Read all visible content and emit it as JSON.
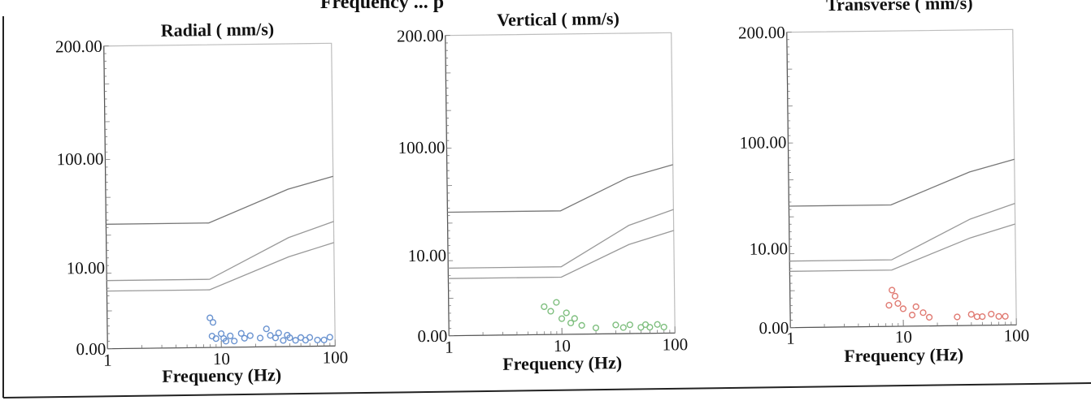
{
  "page_title": "Frequency ... p",
  "chart_data": [
    {
      "type": "scatter",
      "title": "Radial ( mm/s)",
      "xlabel": "Frequency (Hz)",
      "ylabel": "",
      "x_scale": "log",
      "xlim": [
        1,
        100
      ],
      "x_tick_labels": [
        "1",
        "10",
        "100"
      ],
      "y_tick_labels": [
        "0.00",
        "10.00",
        "100.00",
        "200.00"
      ],
      "grid": false,
      "point_color": "#6a93d0",
      "limit_curves": [
        {
          "x": [
            1,
            8,
            40,
            100
          ],
          "y": [
            4.5,
            4.5,
            12,
            16
          ]
        },
        {
          "x": [
            1,
            8,
            40,
            100
          ],
          "y": [
            6.5,
            6.5,
            18,
            25
          ]
        },
        {
          "x": [
            1,
            8,
            40,
            100
          ],
          "y": [
            25,
            25,
            50,
            65
          ]
        }
      ],
      "points": [
        [
          8,
          1.4
        ],
        [
          8.5,
          1.1
        ],
        [
          8.3,
          0.4
        ],
        [
          9,
          0.3
        ],
        [
          10,
          0.5
        ],
        [
          10.5,
          0.3
        ],
        [
          11,
          0.2
        ],
        [
          12,
          0.4
        ],
        [
          13,
          0.2
        ],
        [
          15,
          0.5
        ],
        [
          16,
          0.3
        ],
        [
          18,
          0.4
        ],
        [
          22,
          0.3
        ],
        [
          25,
          0.7
        ],
        [
          27,
          0.4
        ],
        [
          30,
          0.3
        ],
        [
          32,
          0.5
        ],
        [
          35,
          0.2
        ],
        [
          38,
          0.4
        ],
        [
          40,
          0.3
        ],
        [
          45,
          0.2
        ],
        [
          50,
          0.3
        ],
        [
          55,
          0.2
        ],
        [
          60,
          0.3
        ],
        [
          70,
          0.2
        ],
        [
          80,
          0.2
        ],
        [
          90,
          0.3
        ]
      ]
    },
    {
      "type": "scatter",
      "title": "Vertical ( mm/s)",
      "xlabel": "Frequency (Hz)",
      "ylabel": "",
      "x_scale": "log",
      "xlim": [
        1,
        100
      ],
      "x_tick_labels": [
        "1",
        "10",
        "100"
      ],
      "y_tick_labels": [
        "0.00",
        "10.00",
        "100.00",
        "200.00"
      ],
      "grid": false,
      "point_color": "#7fbf7f",
      "limit_curves": [
        {
          "x": [
            1,
            10,
            40,
            100
          ],
          "y": [
            4.5,
            4.5,
            12,
            16
          ]
        },
        {
          "x": [
            1,
            10,
            40,
            100
          ],
          "y": [
            6.5,
            6.5,
            18,
            25
          ]
        },
        {
          "x": [
            1,
            10,
            40,
            100
          ],
          "y": [
            25,
            25,
            50,
            65
          ]
        }
      ],
      "points": [
        [
          7,
          1.3
        ],
        [
          8,
          1.0
        ],
        [
          9,
          1.6
        ],
        [
          10,
          0.6
        ],
        [
          11,
          0.9
        ],
        [
          12,
          0.4
        ],
        [
          13,
          0.6
        ],
        [
          15,
          0.3
        ],
        [
          20,
          0.2
        ],
        [
          30,
          0.3
        ],
        [
          35,
          0.2
        ],
        [
          40,
          0.3
        ],
        [
          50,
          0.2
        ],
        [
          55,
          0.3
        ],
        [
          60,
          0.2
        ],
        [
          70,
          0.3
        ],
        [
          80,
          0.2
        ]
      ]
    },
    {
      "type": "scatter",
      "title": "Transverse ( mm/s)",
      "xlabel": "Frequency (Hz)",
      "ylabel": "",
      "x_scale": "log",
      "xlim": [
        1,
        100
      ],
      "x_tick_labels": [
        "1",
        "10",
        "100"
      ],
      "y_tick_labels": [
        "0.00",
        "10.00",
        "100.00",
        "200.00"
      ],
      "grid": false,
      "point_color": "#e07a72",
      "limit_curves": [
        {
          "x": [
            1,
            8,
            40,
            100
          ],
          "y": [
            4.5,
            4.5,
            12,
            16
          ]
        },
        {
          "x": [
            1,
            8,
            40,
            100
          ],
          "y": [
            6.5,
            6.5,
            18,
            25
          ]
        },
        {
          "x": [
            1,
            8,
            40,
            100
          ],
          "y": [
            25,
            25,
            50,
            65
          ]
        }
      ],
      "points": [
        [
          8,
          2.0
        ],
        [
          8.5,
          1.5
        ],
        [
          7.5,
          0.9
        ],
        [
          9,
          1.0
        ],
        [
          10,
          0.7
        ],
        [
          12,
          0.4
        ],
        [
          13,
          0.8
        ],
        [
          15,
          0.5
        ],
        [
          17,
          0.3
        ],
        [
          30,
          0.3
        ],
        [
          40,
          0.4
        ],
        [
          45,
          0.3
        ],
        [
          50,
          0.3
        ],
        [
          60,
          0.4
        ],
        [
          70,
          0.3
        ],
        [
          80,
          0.3
        ]
      ]
    }
  ]
}
